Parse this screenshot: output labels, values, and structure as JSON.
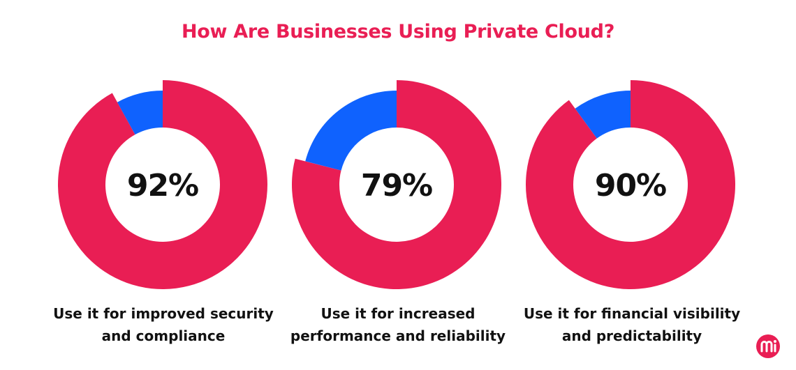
{
  "chart_data": {
    "type": "pie",
    "title": "How Are Businesses Using Private Cloud?",
    "charts": [
      {
        "value": 92,
        "label": "92%",
        "caption_lines": [
          "Use it for improved security",
          "and compliance"
        ]
      },
      {
        "value": 79,
        "label": "79%",
        "caption_lines": [
          "Use it for increased",
          "performance and reliability"
        ]
      },
      {
        "value": 90,
        "label": "90%",
        "caption_lines": [
          "Use it for financial visibility",
          "and predictability"
        ]
      }
    ],
    "colors": {
      "primary": "#e91e54",
      "remainder": "#0f62fe",
      "title": "#e91e54",
      "text": "#111111"
    }
  },
  "brand": {
    "logo_icon": "mi-logo-icon",
    "logo_color": "#e91e54"
  }
}
